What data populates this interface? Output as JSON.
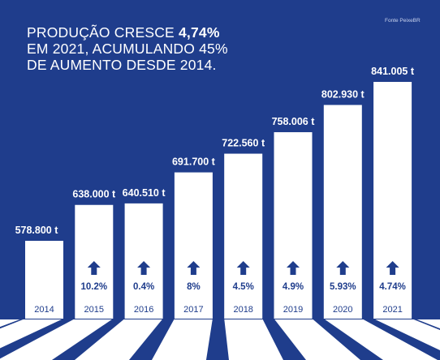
{
  "colors": {
    "background": "#1f3d8c",
    "bar": "#ffffff",
    "bar_text": "#1f3d8c",
    "label_text": "#ffffff"
  },
  "header": {
    "title_line1_prefix": "PRODUÇÃO CRESCE ",
    "title_line1_bold": "4,74%",
    "title_line2": "EM 2021, ACUMULANDO 45%",
    "title_line3": "DE AUMENTO DESDE 2014.",
    "source": "Fonte PeixeBR"
  },
  "chart_data": {
    "type": "bar",
    "categories": [
      "2014",
      "2015",
      "2016",
      "2017",
      "2018",
      "2019",
      "2020",
      "2021"
    ],
    "values": [
      578800,
      638000,
      640510,
      691700,
      722560,
      758006,
      802930,
      841005
    ],
    "value_labels": [
      "578.800 t",
      "638.000 t",
      "640.510 t",
      "691.700 t",
      "722.560 t",
      "758.006 t",
      "802.930 t",
      "841.005 t"
    ],
    "growth": [
      "",
      "10.2%",
      "0.4%",
      "8%",
      "4.5%",
      "4.9%",
      "5.93%",
      "4.74%"
    ],
    "growth_icon": "arrow-up-icon",
    "title": "PRODUÇÃO CRESCE 4,74% EM 2021, ACUMULANDO 45% DE AUMENTO DESDE 2014.",
    "xlabel": "",
    "ylabel": "",
    "grid": false,
    "legend": "none"
  }
}
